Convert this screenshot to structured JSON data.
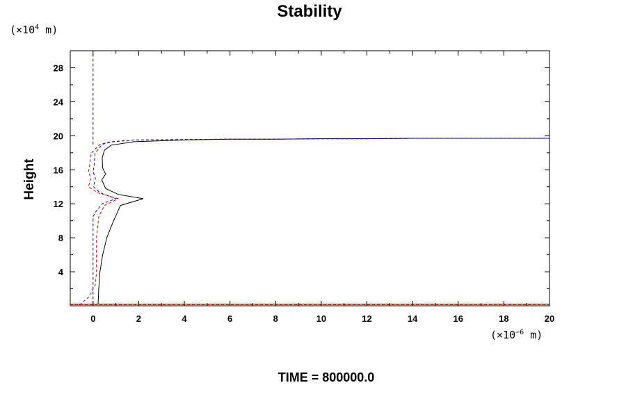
{
  "chart_data": {
    "type": "line",
    "title": "Stability",
    "ylabel": "Height",
    "xlabel": "",
    "y_unit": {
      "prefix": "(×10",
      "exp": "4",
      "suffix": " m)"
    },
    "x_unit": {
      "prefix": "(×10",
      "exp": "−6",
      "suffix": " m)"
    },
    "xlim": [
      -1,
      20
    ],
    "ylim": [
      0,
      30
    ],
    "x_ticks": [
      0,
      2,
      4,
      6,
      8,
      10,
      12,
      14,
      16,
      18,
      20
    ],
    "y_ticks": [
      4,
      8,
      12,
      16,
      20,
      24,
      28
    ],
    "grid": false,
    "footer": "TIME = 800000.0",
    "series": [
      {
        "color": "#000000",
        "dash": "solid",
        "x": [
          0.22,
          0.25,
          0.3,
          0.42,
          0.6,
          0.9,
          1.2,
          2.2,
          1.1,
          0.55,
          0.38,
          0.55,
          0.42,
          0.4,
          0.5,
          0.8,
          1.8,
          4,
          6,
          8,
          10,
          12,
          14,
          16,
          18,
          20
        ],
        "y": [
          0.2,
          2,
          4,
          6,
          8,
          10,
          11.8,
          12.6,
          13.1,
          13.8,
          14.8,
          15.5,
          16.2,
          17.4,
          18.3,
          18.9,
          19.3,
          19.5,
          19.6,
          19.6,
          19.65,
          19.65,
          19.7,
          19.7,
          19.7,
          19.7
        ]
      },
      {
        "color": "#dd0000",
        "dash": "dashed",
        "x": [
          -0.6,
          -0.2,
          0.1,
          0.15,
          0.15,
          0.25,
          0.5,
          1.1,
          0.2,
          -0.2,
          -0.1,
          -0.2,
          -0.15,
          -0.1,
          0.3,
          0.8,
          1.8,
          4,
          6,
          8,
          10,
          12,
          14,
          16,
          18,
          20
        ],
        "y": [
          0.1,
          1,
          2.5,
          4,
          8,
          10.5,
          11.8,
          12.6,
          13.3,
          14,
          15,
          15.8,
          16.5,
          17.9,
          19,
          19.3,
          19.5,
          19.55,
          19.6,
          19.6,
          19.65,
          19.65,
          19.7,
          19.7,
          19.7,
          19.7
        ]
      },
      {
        "color": "#0000cc",
        "dash": "dashed",
        "x": [
          0,
          0,
          0,
          0,
          0,
          0.1,
          0.4,
          1,
          0.3,
          0.02,
          0.1,
          0,
          0.05,
          0.08,
          0.4,
          0.9,
          1.8,
          4,
          6,
          8,
          10,
          12,
          14,
          16,
          18,
          20
        ],
        "y": [
          0.2,
          4,
          8,
          10,
          10.5,
          11,
          12,
          12.6,
          13.3,
          14,
          15,
          15.8,
          16.5,
          17.9,
          19,
          19.3,
          19.5,
          19.55,
          19.6,
          19.6,
          19.65,
          19.65,
          19.7,
          19.7,
          19.7,
          19.7
        ]
      },
      {
        "color": "#0000cc",
        "dash": "dashed",
        "x": [
          0,
          0
        ],
        "y": [
          19,
          30
        ]
      },
      {
        "color": "#000000",
        "dash": "solid",
        "x": [
          -1,
          20
        ],
        "y": [
          0.2,
          0.2
        ]
      },
      {
        "color": "#dd0000",
        "dash": "dashed",
        "x": [
          -1,
          20
        ],
        "y": [
          0.15,
          0.15
        ]
      }
    ]
  }
}
